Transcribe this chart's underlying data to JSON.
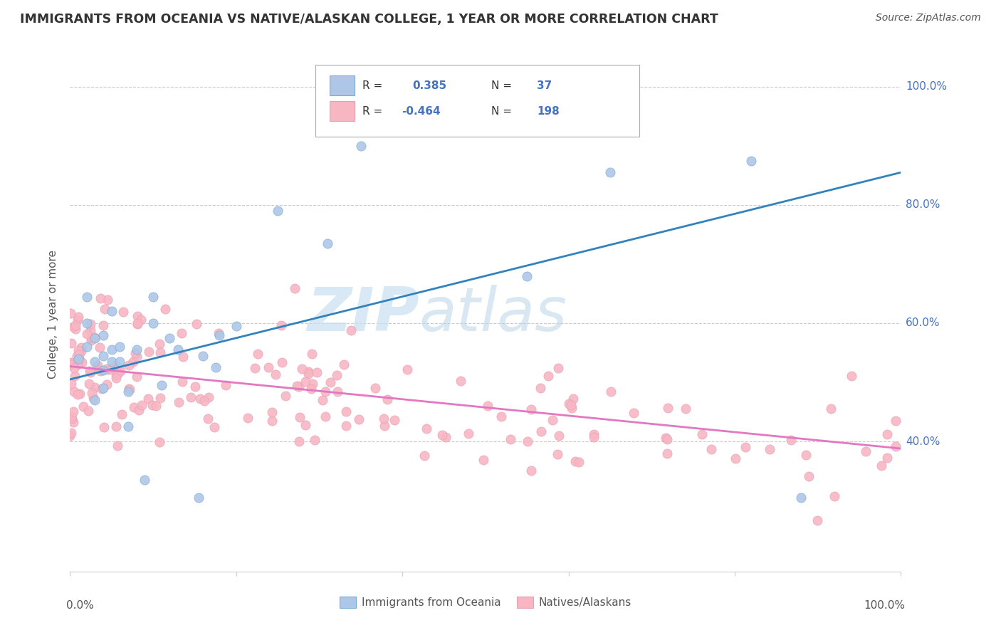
{
  "title": "IMMIGRANTS FROM OCEANIA VS NATIVE/ALASKAN COLLEGE, 1 YEAR OR MORE CORRELATION CHART",
  "source_text": "Source: ZipAtlas.com",
  "ylabel": "College, 1 year or more",
  "xlim": [
    0.0,
    1.0
  ],
  "ylim": [
    0.18,
    1.05
  ],
  "yticks": [
    0.4,
    0.6,
    0.8,
    1.0
  ],
  "ytick_labels": [
    "40.0%",
    "60.0%",
    "80.0%",
    "100.0%"
  ],
  "watermark_zip": "ZIP",
  "watermark_atlas": "atlas",
  "legend_text": [
    [
      "R = ",
      "0.385",
      " N = ",
      "37"
    ],
    [
      "R = ",
      "-0.464",
      " N = ",
      "198"
    ]
  ],
  "blue_scatter_color": "#aec7e8",
  "pink_scatter_color": "#f7b6c2",
  "blue_line_color": "#3182bd",
  "pink_line_color": "#e377c2",
  "ytick_color": "#4472c4",
  "grid_color": "#cccccc",
  "blue_trend_x": [
    0.0,
    1.0
  ],
  "blue_trend_y": [
    0.505,
    0.855
  ],
  "pink_trend_x": [
    0.0,
    1.0
  ],
  "pink_trend_y": [
    0.527,
    0.388
  ],
  "blue_x": [
    0.01,
    0.02,
    0.02,
    0.03,
    0.03,
    0.04,
    0.04,
    0.04,
    0.05,
    0.05,
    0.05,
    0.06,
    0.06,
    0.07,
    0.07,
    0.08,
    0.09,
    0.1,
    0.11,
    0.12,
    0.13,
    0.155,
    0.16,
    0.175,
    0.18,
    0.2,
    0.25,
    0.31,
    0.35,
    0.55,
    0.65,
    0.82,
    0.88,
    0.02,
    0.03,
    0.04,
    0.1
  ],
  "blue_y": [
    0.54,
    0.56,
    0.6,
    0.47,
    0.535,
    0.49,
    0.52,
    0.58,
    0.535,
    0.555,
    0.62,
    0.535,
    0.56,
    0.425,
    0.485,
    0.555,
    0.335,
    0.6,
    0.495,
    0.575,
    0.555,
    0.305,
    0.545,
    0.525,
    0.58,
    0.595,
    0.79,
    0.735,
    0.9,
    0.68,
    0.855,
    0.875,
    0.305,
    0.645,
    0.575,
    0.545,
    0.645
  ],
  "pink_seed": 42,
  "pink_n": 198
}
